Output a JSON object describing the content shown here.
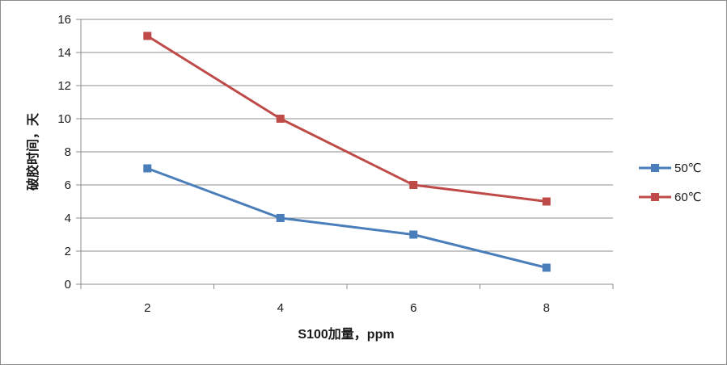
{
  "chart_data": {
    "type": "line",
    "title": "",
    "xlabel": "S100加量，ppm",
    "ylabel": "破胶时间，天",
    "x": [
      2,
      4,
      6,
      8
    ],
    "ylim": [
      0,
      16
    ],
    "yticks": [
      0,
      2,
      4,
      6,
      8,
      10,
      12,
      14,
      16
    ],
    "grid": true,
    "legend_position": "right",
    "series": [
      {
        "name": "50℃",
        "values": [
          7,
          4,
          3,
          1
        ],
        "color": "#4a7ebb"
      },
      {
        "name": "60℃",
        "values": [
          15,
          10,
          6,
          5
        ],
        "color": "#be4b48"
      }
    ]
  }
}
